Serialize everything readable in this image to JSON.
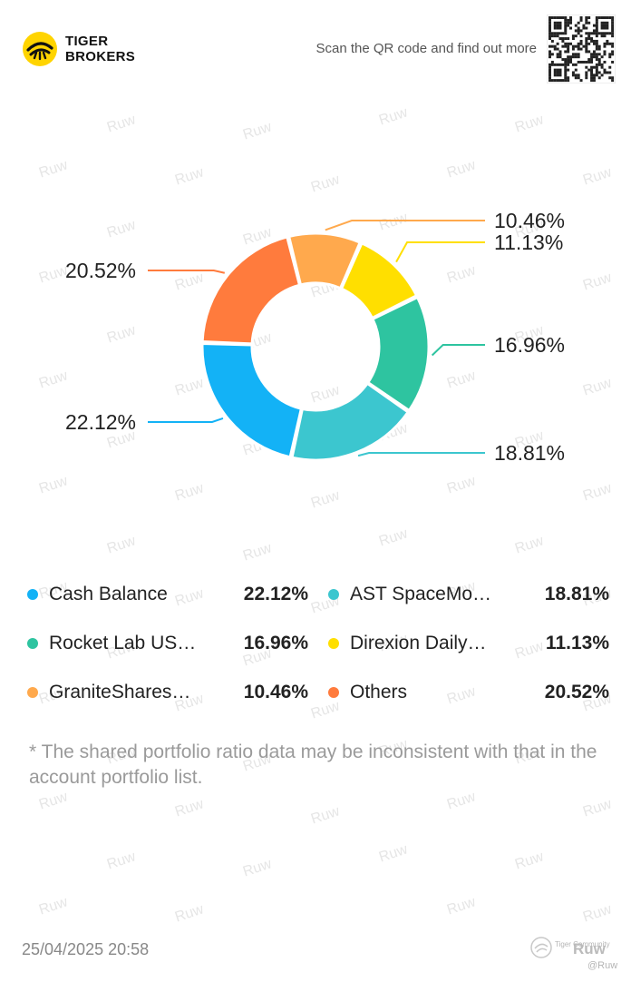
{
  "header": {
    "brand_line1": "TIGER",
    "brand_line2": "BROKERS",
    "scan_text": "Scan the QR code and find out more"
  },
  "watermark": {
    "text": "Ruw"
  },
  "chart_data": {
    "type": "pie",
    "variant": "donut",
    "title": "",
    "slices": [
      {
        "name": "GraniteShares…",
        "value": 10.46,
        "label": "10.46%",
        "color": "#FFA94D"
      },
      {
        "name": "Direxion Daily…",
        "value": 11.13,
        "label": "11.13%",
        "color": "#FFDF00"
      },
      {
        "name": "Rocket Lab US…",
        "value": 16.96,
        "label": "16.96%",
        "color": "#2EC4A0"
      },
      {
        "name": "AST SpaceMo…",
        "value": 18.81,
        "label": "18.81%",
        "color": "#3CC6CF"
      },
      {
        "name": "Cash Balance",
        "value": 22.12,
        "label": "22.12%",
        "color": "#13B2F6"
      },
      {
        "name": "Others",
        "value": 20.52,
        "label": "20.52%",
        "color": "#FF7B3D"
      }
    ]
  },
  "legend": [
    {
      "name": "Cash Balance",
      "value": "22.12%",
      "color": "#13B2F6"
    },
    {
      "name": "AST SpaceMo…",
      "value": "18.81%",
      "color": "#3CC6CF"
    },
    {
      "name": "Rocket Lab US…",
      "value": "16.96%",
      "color": "#2EC4A0"
    },
    {
      "name": "Direxion Daily…",
      "value": "11.13%",
      "color": "#FFDF00"
    },
    {
      "name": "GraniteShares…",
      "value": "10.46%",
      "color": "#FFA94D"
    },
    {
      "name": "Others",
      "value": "20.52%",
      "color": "#FF7B3D"
    }
  ],
  "disclaimer": "* The shared portfolio ratio data may be inconsistent with that in the account portfolio list.",
  "footer": {
    "date": "25/04/2025 20:58",
    "community_text": "Tiger Community",
    "user": "Ruw",
    "handle": "@Ruw"
  }
}
